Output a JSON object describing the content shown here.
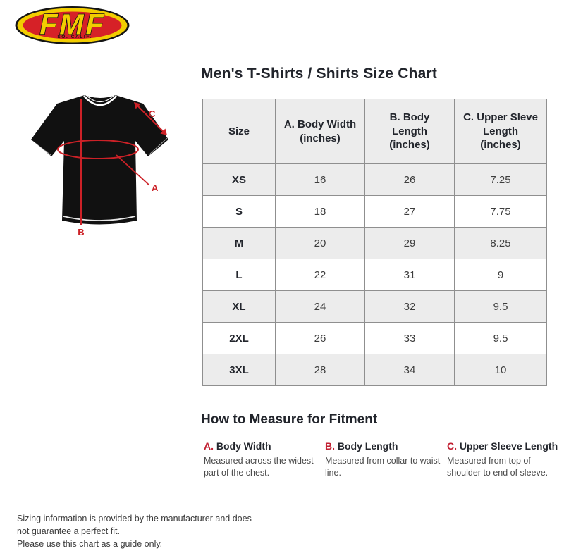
{
  "logo": {
    "brand": "FMF",
    "subtext": "SO. CALIF.",
    "colors": {
      "yellow": "#f2cd00",
      "red": "#d62127",
      "outline": "#141414"
    }
  },
  "page": {
    "title": "Men's T-Shirts / Shirts Size Chart"
  },
  "diagram": {
    "labels": {
      "a": "A",
      "b": "B",
      "c": "C"
    },
    "line_color": "#cc2127",
    "shirt_color": "#111111"
  },
  "size_chart": {
    "columns": [
      [
        "Size"
      ],
      [
        "A. Body Width",
        "(inches)"
      ],
      [
        "B. Body",
        "Length",
        "(inches)"
      ],
      [
        "C. Upper Sleve",
        "Length",
        "(inches)"
      ]
    ],
    "rows": [
      {
        "size": "XS",
        "values": [
          "16",
          "26",
          "7.25"
        ]
      },
      {
        "size": "S",
        "values": [
          "18",
          "27",
          "7.75"
        ]
      },
      {
        "size": "M",
        "values": [
          "20",
          "29",
          "8.25"
        ]
      },
      {
        "size": "L",
        "values": [
          "22",
          "31",
          "9"
        ]
      },
      {
        "size": "XL",
        "values": [
          "24",
          "32",
          "9.5"
        ]
      },
      {
        "size": "2XL",
        "values": [
          "26",
          "33",
          "9.5"
        ]
      },
      {
        "size": "3XL",
        "values": [
          "28",
          "34",
          "10"
        ]
      }
    ]
  },
  "measure_section": {
    "heading": "How to Measure for Fitment",
    "items": [
      {
        "key": "A.",
        "title": "Body Width",
        "description": "Measured across the widest part of the chest."
      },
      {
        "key": "B.",
        "title": "Body Length",
        "description": "Measured from collar to waist line."
      },
      {
        "key": "C.",
        "title": "Upper Sleeve Length",
        "description": "Measured from top of shoulder to end of sleeve."
      }
    ]
  },
  "footer": {
    "line1": "Sizing information is provided by the manufacturer and does not guarantee a perfect fit.",
    "line2": "Please use this chart as a guide only."
  }
}
